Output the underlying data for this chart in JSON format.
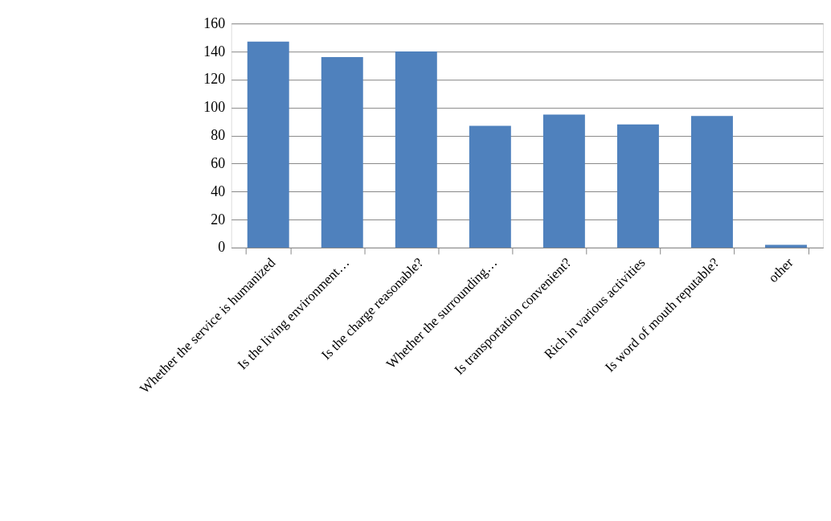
{
  "chart_data": {
    "type": "bar",
    "categories": [
      "Whether the service is humanized",
      "Is the living environment…",
      "Is the charge reasonable?",
      "Whether the surrounding…",
      "Is transportation convenient?",
      "Rich in various activities",
      "Is word of mouth reputable?",
      "other"
    ],
    "values": [
      147,
      136,
      140,
      87,
      95,
      88,
      94,
      2
    ],
    "color": "#4f81bd",
    "ylim": [
      0,
      160
    ],
    "yticks": [
      0,
      20,
      40,
      60,
      80,
      100,
      120,
      140,
      160
    ],
    "grid": "y"
  }
}
